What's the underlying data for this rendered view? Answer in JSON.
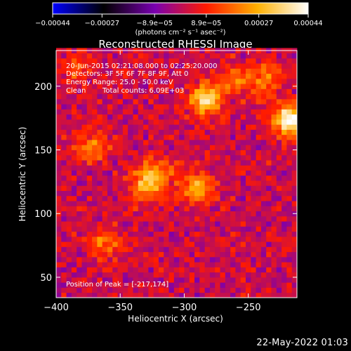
{
  "chart_data": {
    "type": "heatmap",
    "title": "Reconstructed RHESSI Image",
    "xlabel": "Heliocentric X (arcsec)",
    "ylabel": "Heliocentric Y (arcsec)",
    "xlim": [
      -400,
      -212
    ],
    "ylim": [
      34,
      228
    ],
    "x_ticks": [
      -400,
      -350,
      -300,
      -250
    ],
    "x_tick_labels": [
      "−400",
      "−350",
      "−300",
      "−250"
    ],
    "y_ticks": [
      50,
      100,
      150,
      200
    ],
    "y_tick_labels": [
      "50",
      "100",
      "150",
      "200"
    ],
    "colorbar": {
      "min": -0.00044,
      "max": 0.00044,
      "ticks": [
        -0.00044,
        -0.00027,
        -8.9e-05,
        8.9e-05,
        0.00027,
        0.00044
      ],
      "tick_labels": [
        "−0.00044",
        "−0.00027",
        "−8.9e−05",
        "8.9e−05",
        "0.00027",
        "0.00044"
      ],
      "units": "(photons cm⁻² s⁻¹ asec⁻²)",
      "colors": [
        "#0000ff",
        "#000000",
        "#7a00b0",
        "#ff1a00",
        "#ffb000",
        "#ffffff"
      ]
    },
    "sources": [
      {
        "x": -217,
        "y": 174,
        "amplitude": 0.00044
      },
      {
        "x": -283,
        "y": 189,
        "amplitude": 0.00034
      },
      {
        "x": -290,
        "y": 121,
        "amplitude": 0.00024
      },
      {
        "x": -330,
        "y": 122,
        "amplitude": 0.00024
      },
      {
        "x": -372,
        "y": 152,
        "amplitude": 0.0002
      },
      {
        "x": -362,
        "y": 78,
        "amplitude": 0.00018
      },
      {
        "x": -320,
        "y": 132,
        "amplitude": 0.00017
      },
      {
        "x": -260,
        "y": 205,
        "amplitude": 0.00017
      },
      {
        "x": -235,
        "y": 206,
        "amplitude": 0.00018
      },
      {
        "x": -385,
        "y": 215,
        "amplitude": 0.00013
      }
    ],
    "peak": {
      "x": -217,
      "y": 174
    }
  },
  "annotations": {
    "time_range": "20-Jun-2015 02:21:08.000 to 02:25:20.000",
    "detectors": "Detectors: 3F 5F 6F 7F 8F 9F, Att 0",
    "energy_range": "Energy Range: 25.0 - 50.0 keV",
    "method": "Clean",
    "total_counts": "Total counts: 6.09E+03",
    "peak_position": "Position of Peak = [-217,174]"
  },
  "footer": {
    "date_stamp": "22-May-2022 01:03"
  }
}
